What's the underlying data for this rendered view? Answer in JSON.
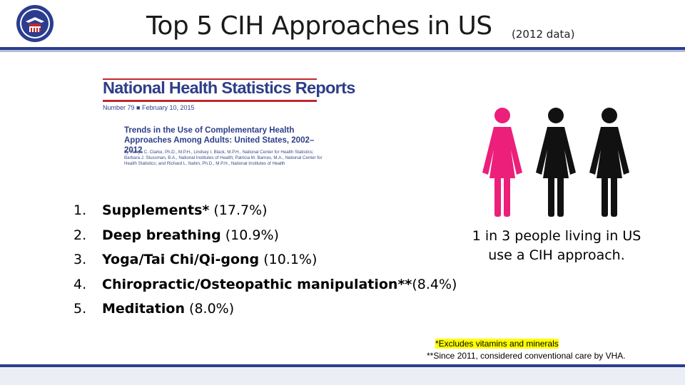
{
  "header": {
    "title": "Top 5 CIH Approaches in US",
    "subtitle": "(2012 data)"
  },
  "report": {
    "series": "National Health Statistics Reports",
    "issue": "Number 79 ■ February 10, 2015",
    "title": "Trends in the Use of Complementary Health Approaches Among Adults: United States, 2002–2012",
    "authors": "by Tainya C. Clarke, Ph.D., M.P.H., Lindsey I. Black, M.P.H., National Center for Health Statistics; Barbara J. Stussman, B.A., National Institutes of Health; Patricia M. Barnes, M.A., National Center for Health Statistics; and Richard L. Nahin, Ph.D., M.P.H., National Institutes of Health"
  },
  "list": [
    {
      "num": "1.",
      "name": "Supplements*",
      "value": "(17.7%)"
    },
    {
      "num": "2.",
      "name": "Deep breathing",
      "value": "(10.9%)"
    },
    {
      "num": "3.",
      "name": "Yoga/Tai Chi/Qi-gong",
      "value": "(10.1%)"
    },
    {
      "num": "4.",
      "name": "Chiropractic/Osteopathic manipulation**",
      "value": "(8.4%)"
    },
    {
      "num": "5.",
      "name": "Meditation",
      "value": "(8.0%)"
    }
  ],
  "stat": {
    "line1": "1 in 3 people living in US",
    "line2": "use a CIH approach."
  },
  "footnotes": {
    "note1": "*Excludes vitamins and minerals",
    "note2": "**Since 2011, considered conventional care by VHA."
  },
  "colors": {
    "accent": "#2a3d8f",
    "figure_highlight": "#ec1f7a",
    "figure_default": "#111111",
    "footnote_highlight": "#ffff00"
  },
  "figures": {
    "total": 3,
    "highlighted": 1
  }
}
